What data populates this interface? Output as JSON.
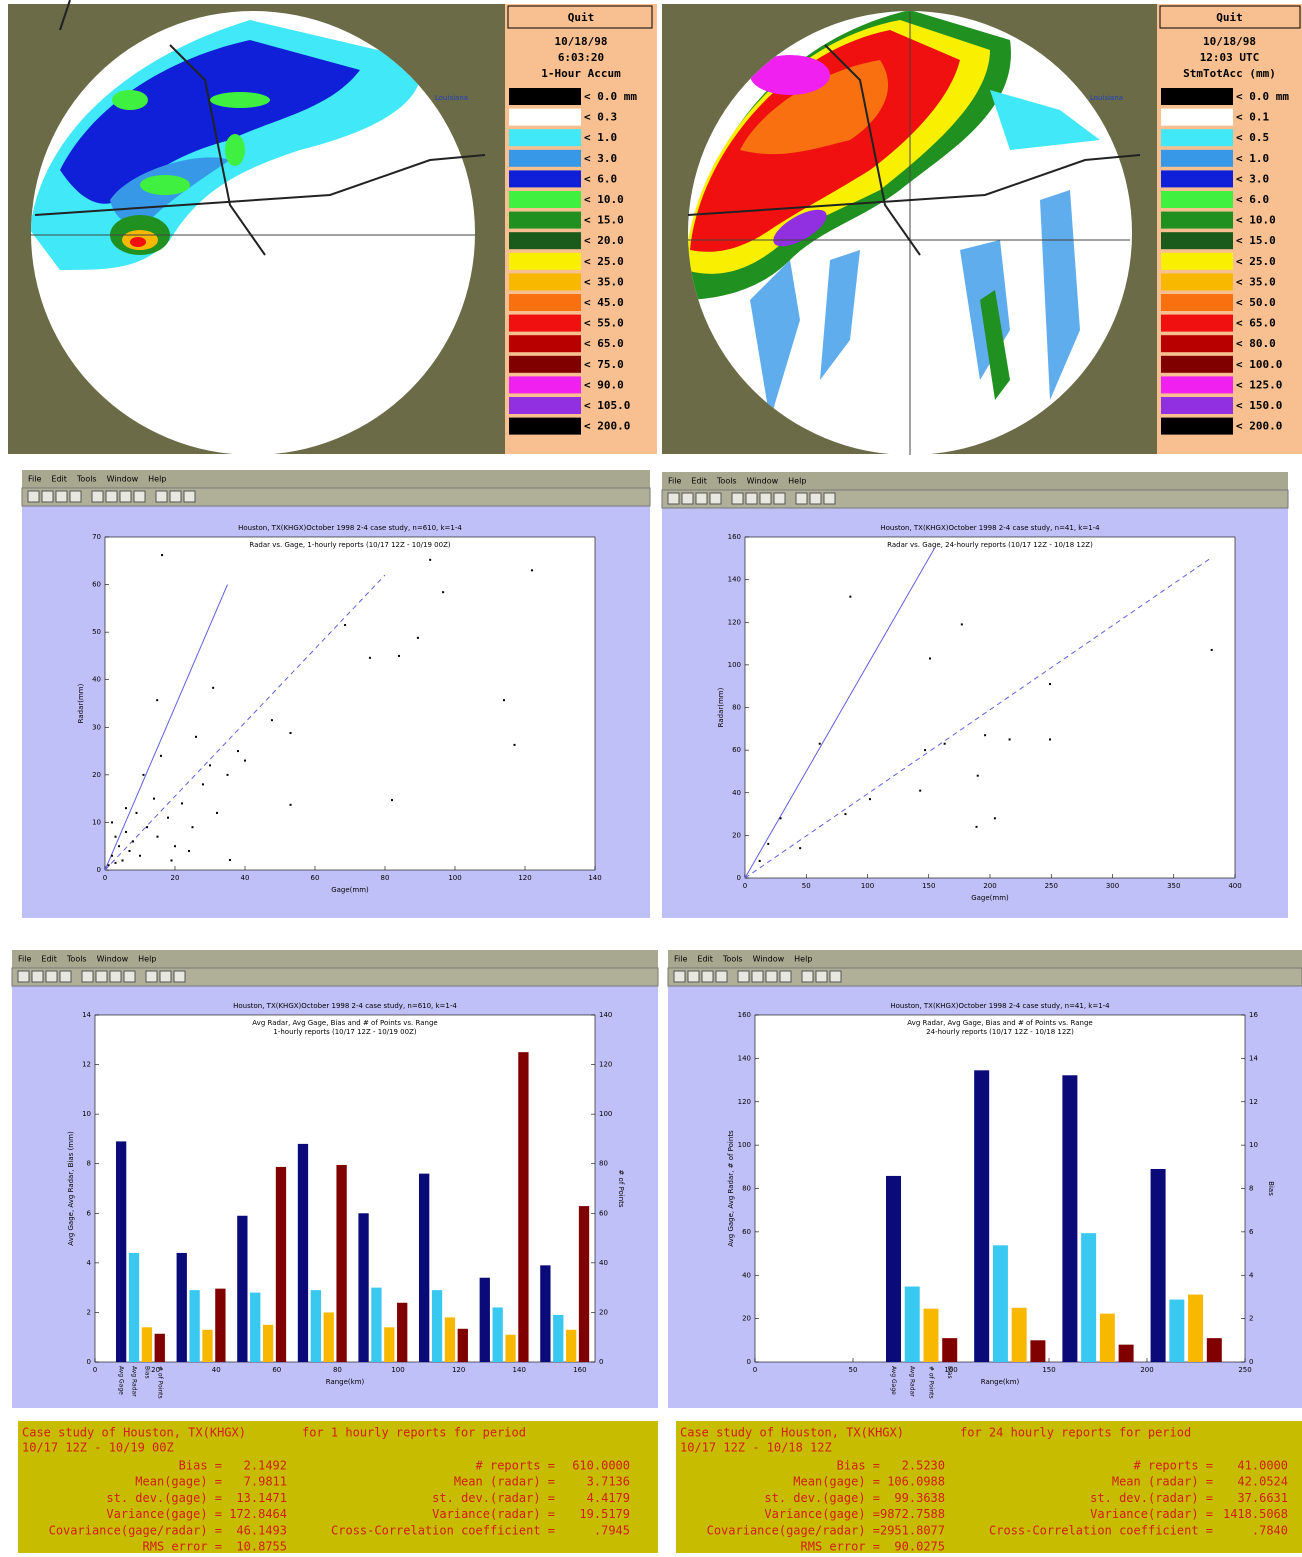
{
  "radar_panels": [
    {
      "header": [
        "Quit",
        "10/18/98",
        "6:03:20",
        "1-Hour Accum"
      ],
      "map_label": "Louisiana",
      "legend": [
        {
          "label": "< 0.0 mm",
          "color": "#000000"
        },
        {
          "label": "< 0.3",
          "color": "#ffffff"
        },
        {
          "label": "< 1.0",
          "color": "#40e8f8"
        },
        {
          "label": "< 3.0",
          "color": "#3898e8"
        },
        {
          "label": "< 6.0",
          "color": "#1020d8"
        },
        {
          "label": "< 10.0",
          "color": "#40f040"
        },
        {
          "label": "< 15.0",
          "color": "#209020"
        },
        {
          "label": "< 20.0",
          "color": "#1a5a1a"
        },
        {
          "label": "< 25.0",
          "color": "#f8f000"
        },
        {
          "label": "< 35.0",
          "color": "#f8b800"
        },
        {
          "label": "< 45.0",
          "color": "#f87010"
        },
        {
          "label": "< 55.0",
          "color": "#f01010"
        },
        {
          "label": "< 65.0",
          "color": "#b80000"
        },
        {
          "label": "< 75.0",
          "color": "#800000"
        },
        {
          "label": "< 90.0",
          "color": "#f020f0"
        },
        {
          "label": "< 105.0",
          "color": "#9030e0"
        },
        {
          "label": "< 200.0",
          "color": "#000000"
        }
      ]
    },
    {
      "header": [
        "Quit",
        "10/18/98",
        "12:03 UTC",
        "StmTotAcc (mm)"
      ],
      "map_label": "Louisiana",
      "legend": [
        {
          "label": "< 0.0 mm",
          "color": "#000000"
        },
        {
          "label": "< 0.1",
          "color": "#ffffff"
        },
        {
          "label": "< 0.5",
          "color": "#40e8f8"
        },
        {
          "label": "< 1.0",
          "color": "#3898e8"
        },
        {
          "label": "< 3.0",
          "color": "#1020d8"
        },
        {
          "label": "< 6.0",
          "color": "#40f040"
        },
        {
          "label": "< 10.0",
          "color": "#209020"
        },
        {
          "label": "< 15.0",
          "color": "#1a5a1a"
        },
        {
          "label": "< 25.0",
          "color": "#f8f000"
        },
        {
          "label": "< 35.0",
          "color": "#f8b800"
        },
        {
          "label": "< 50.0",
          "color": "#f87010"
        },
        {
          "label": "< 65.0",
          "color": "#f01010"
        },
        {
          "label": "< 80.0",
          "color": "#b80000"
        },
        {
          "label": "< 100.0",
          "color": "#800000"
        },
        {
          "label": "< 125.0",
          "color": "#f020f0"
        },
        {
          "label": "< 150.0",
          "color": "#9030e0"
        },
        {
          "label": "< 200.0",
          "color": "#000000"
        }
      ]
    }
  ],
  "windows": [
    {
      "menu": [
        "File",
        "Edit",
        "Tools",
        "Window",
        "Help"
      ]
    },
    {
      "menu": [
        "File",
        "Edit",
        "Tools",
        "Window",
        "Help"
      ]
    },
    {
      "menu": [
        "File",
        "Edit",
        "Tools",
        "Window",
        "Help"
      ]
    },
    {
      "menu": [
        "File",
        "Edit",
        "Tools",
        "Window",
        "Help"
      ]
    }
  ],
  "chart_data": [
    {
      "type": "scatter",
      "title": "Houston, TX(KHGX)October 1998 2-4 case study, n=610, k=1-4",
      "subtitle": [
        "Radar vs. Gage, 1-hourly reports (10/17 12Z - 10/19 00Z)"
      ],
      "x_label": "Gage(mm)",
      "y_label": "Radar(mm)",
      "xlim": [
        0,
        140
      ],
      "ylim": [
        0,
        70
      ],
      "xticks": [
        0,
        20,
        40,
        60,
        80,
        100,
        120,
        140
      ],
      "yticks": [
        0,
        10,
        20,
        30,
        40,
        50,
        60,
        70
      ],
      "color": "#000000",
      "x": [
        16.3,
        92.9,
        122,
        96.6,
        68.6,
        89.4,
        75.7,
        84,
        14.9,
        114,
        30.9,
        117,
        53,
        47.7,
        40,
        82,
        53,
        35.7,
        1,
        2,
        3,
        4,
        5,
        6,
        7,
        8,
        10,
        12,
        9,
        15,
        18,
        20,
        14,
        22,
        25,
        28,
        11,
        16,
        26,
        30,
        35,
        24,
        3,
        6,
        2,
        19,
        32,
        38
      ],
      "values": [
        66.2,
        65.2,
        63,
        58.4,
        51.5,
        48.8,
        44.6,
        45,
        35.7,
        35.7,
        38.3,
        26.3,
        28.8,
        31.5,
        23,
        14.7,
        13.7,
        2.1,
        1,
        3,
        1.5,
        5,
        2,
        8,
        4,
        6,
        3,
        9,
        12,
        7,
        11,
        5,
        15,
        14,
        9,
        18,
        20,
        24,
        28,
        22,
        20,
        4,
        7,
        13,
        10,
        2,
        12,
        25
      ],
      "reference_lines": [
        {
          "x": [
            0,
            35
          ],
          "y": [
            0,
            60
          ],
          "color": "#6060e0",
          "dashed": false
        },
        {
          "x": [
            0,
            80
          ],
          "y": [
            0,
            62
          ],
          "color": "#6060e0",
          "dashed": true
        }
      ]
    },
    {
      "type": "scatter",
      "title": "Houston, TX(KHGX)October 1998 2-4 case study, n=41, k=1-4",
      "subtitle": [
        "Radar vs. Gage, 24-hourly reports (10/17 12Z - 10/18 12Z)"
      ],
      "x_label": "Gage(mm)",
      "y_label": "Radar(mm)",
      "xlim": [
        0,
        400
      ],
      "ylim": [
        0,
        160
      ],
      "xticks": [
        0,
        50,
        100,
        150,
        200,
        250,
        300,
        350,
        400
      ],
      "yticks": [
        0,
        20,
        40,
        60,
        80,
        100,
        120,
        140,
        160
      ],
      "color": "#000000",
      "x": [
        381,
        177,
        249,
        151,
        86,
        147,
        163,
        196,
        216,
        249,
        190,
        61,
        102,
        82,
        143,
        189,
        204,
        29,
        19,
        45,
        12
      ],
      "values": [
        107,
        119,
        91,
        103,
        132,
        60,
        63,
        67,
        65,
        65,
        48,
        63,
        37,
        30,
        41,
        24,
        28,
        28,
        16,
        14,
        8
      ],
      "reference_lines": [
        {
          "x": [
            0,
            155
          ],
          "y": [
            0,
            155
          ],
          "color": "#6060e0",
          "dashed": false
        },
        {
          "x": [
            0,
            380
          ],
          "y": [
            0,
            150
          ],
          "color": "#6060e0",
          "dashed": true
        }
      ]
    },
    {
      "type": "bar",
      "title": "Houston, TX(KHGX)October 1998 2-4 case study, n=610, k=1-4",
      "subtitle": [
        "Avg Radar, Avg Gage, Bias and # of Points vs. Range",
        "1-hourly reports (10/17 12Z - 10/19 00Z)"
      ],
      "x_label": "Range(km)",
      "y_label": "Avg Gage, Avg Radar, Bias (mm)",
      "y2_label": "# of Points",
      "x": [
        15,
        35,
        55,
        75,
        95,
        115,
        135,
        155
      ],
      "xlim": [
        0,
        165
      ],
      "xticks": [
        0,
        20,
        40,
        60,
        80,
        100,
        120,
        140,
        160
      ],
      "ylim": [
        0,
        14
      ],
      "yticks": [
        0,
        2,
        4,
        6,
        8,
        10,
        12,
        14
      ],
      "y2lim": [
        0,
        140
      ],
      "y2ticks": [
        0,
        20,
        40,
        60,
        80,
        100,
        120,
        140
      ],
      "series": [
        {
          "name": "Avg Gage",
          "color": "#0a0a78",
          "values": [
            8.9,
            4.4,
            5.9,
            8.8,
            6.0,
            7.6,
            3.4,
            3.9
          ]
        },
        {
          "name": "Avg Radar",
          "color": "#38c8f0",
          "values": [
            4.4,
            2.9,
            2.8,
            2.9,
            3.0,
            2.9,
            2.2,
            1.9
          ]
        },
        {
          "name": "Bias",
          "color": "#f8b800",
          "values": [
            1.4,
            1.3,
            1.5,
            2.0,
            1.4,
            1.8,
            1.1,
            1.3
          ]
        },
        {
          "name": "# of Points",
          "color": "#800000",
          "axis": "y2",
          "values": [
            11.4,
            29.6,
            78.7,
            79.5,
            23.9,
            13.4,
            125,
            62.9
          ]
        }
      ]
    },
    {
      "type": "bar",
      "title": "Houston, TX(KHGX)October 1998 2-4 case study, n=41, k=1-4",
      "subtitle": [
        "Avg Radar, Avg Gage, Bias and # of Points vs. Range",
        "24-hourly reports (10/17 12Z - 10/18 12Z)"
      ],
      "x_label": "Range(km)",
      "y_label": "Avg Gage, Avg Radar, # of Points",
      "y2_label": "Bias",
      "x": [
        85,
        130,
        175,
        220
      ],
      "xlim": [
        0,
        250
      ],
      "xticks": [
        0,
        50,
        100,
        150,
        200,
        250
      ],
      "ylim": [
        0,
        160
      ],
      "yticks": [
        0,
        20,
        40,
        60,
        80,
        100,
        120,
        140,
        160
      ],
      "y2lim": [
        0,
        16
      ],
      "y2ticks": [
        0,
        2,
        4,
        6,
        8,
        10,
        12,
        14,
        16
      ],
      "series": [
        {
          "name": "Avg Gage",
          "color": "#0a0a78",
          "values": [
            85.8,
            134.5,
            132.2,
            89.0
          ]
        },
        {
          "name": "Avg Radar",
          "color": "#38c8f0",
          "values": [
            34.8,
            53.8,
            59.4,
            28.8
          ]
        },
        {
          "name": "# of Points",
          "color": "#f8b800",
          "values": [
            24.6,
            25.0,
            22.3,
            31.1
          ]
        },
        {
          "name": "Bias",
          "color": "#800000",
          "axis": "y2",
          "values": [
            1.1,
            1.0,
            0.8,
            1.1
          ]
        }
      ]
    }
  ],
  "stats": [
    {
      "heading": "Case study of Houston, TX(KHGX)",
      "period_text": "for 1  hourly reports for period",
      "period": "10/17 12Z - 10/19 00Z",
      "left": [
        {
          "label": "Bias =",
          "value": "2.1492"
        },
        {
          "label": "Mean(gage) =",
          "value": "7.9811"
        },
        {
          "label": "st. dev.(gage) =",
          "value": "13.1471"
        },
        {
          "label": "Variance(gage) =",
          "value": "172.8464"
        },
        {
          "label": "Covariance(gage/radar) =",
          "value": "46.1493"
        },
        {
          "label": "RMS error =",
          "value": "10.8755"
        }
      ],
      "right": [
        {
          "label": "# reports =",
          "value": "610.0000"
        },
        {
          "label": "Mean (radar) =",
          "value": "3.7136"
        },
        {
          "label": "st. dev.(radar) =",
          "value": "4.4179"
        },
        {
          "label": "Variance(radar) =",
          "value": "19.5179"
        },
        {
          "label": "Cross-Correlation coefficient =",
          "value": ".7945"
        }
      ]
    },
    {
      "heading": "Case study of Houston, TX(KHGX)",
      "period_text": "for 24 hourly reports for period",
      "period": "10/17 12Z - 10/18 12Z",
      "left": [
        {
          "label": "Bias =",
          "value": "2.5230"
        },
        {
          "label": "Mean(gage) =",
          "value": "106.0988"
        },
        {
          "label": "st. dev.(gage) =",
          "value": "99.3638"
        },
        {
          "label": "Variance(gage) =",
          "value": "9872.7588"
        },
        {
          "label": "Covariance(gage/radar) =",
          "value": "2951.8077"
        },
        {
          "label": "RMS error =",
          "value": "90.0275"
        }
      ],
      "right": [
        {
          "label": "# reports =",
          "value": "41.0000"
        },
        {
          "label": "Mean (radar) =",
          "value": "42.0524"
        },
        {
          "label": "st. dev.(radar) =",
          "value": "37.6631"
        },
        {
          "label": "Variance(radar) =",
          "value": "1418.5068"
        },
        {
          "label": "Cross-Correlation coefficient =",
          "value": ".7840"
        }
      ]
    }
  ]
}
